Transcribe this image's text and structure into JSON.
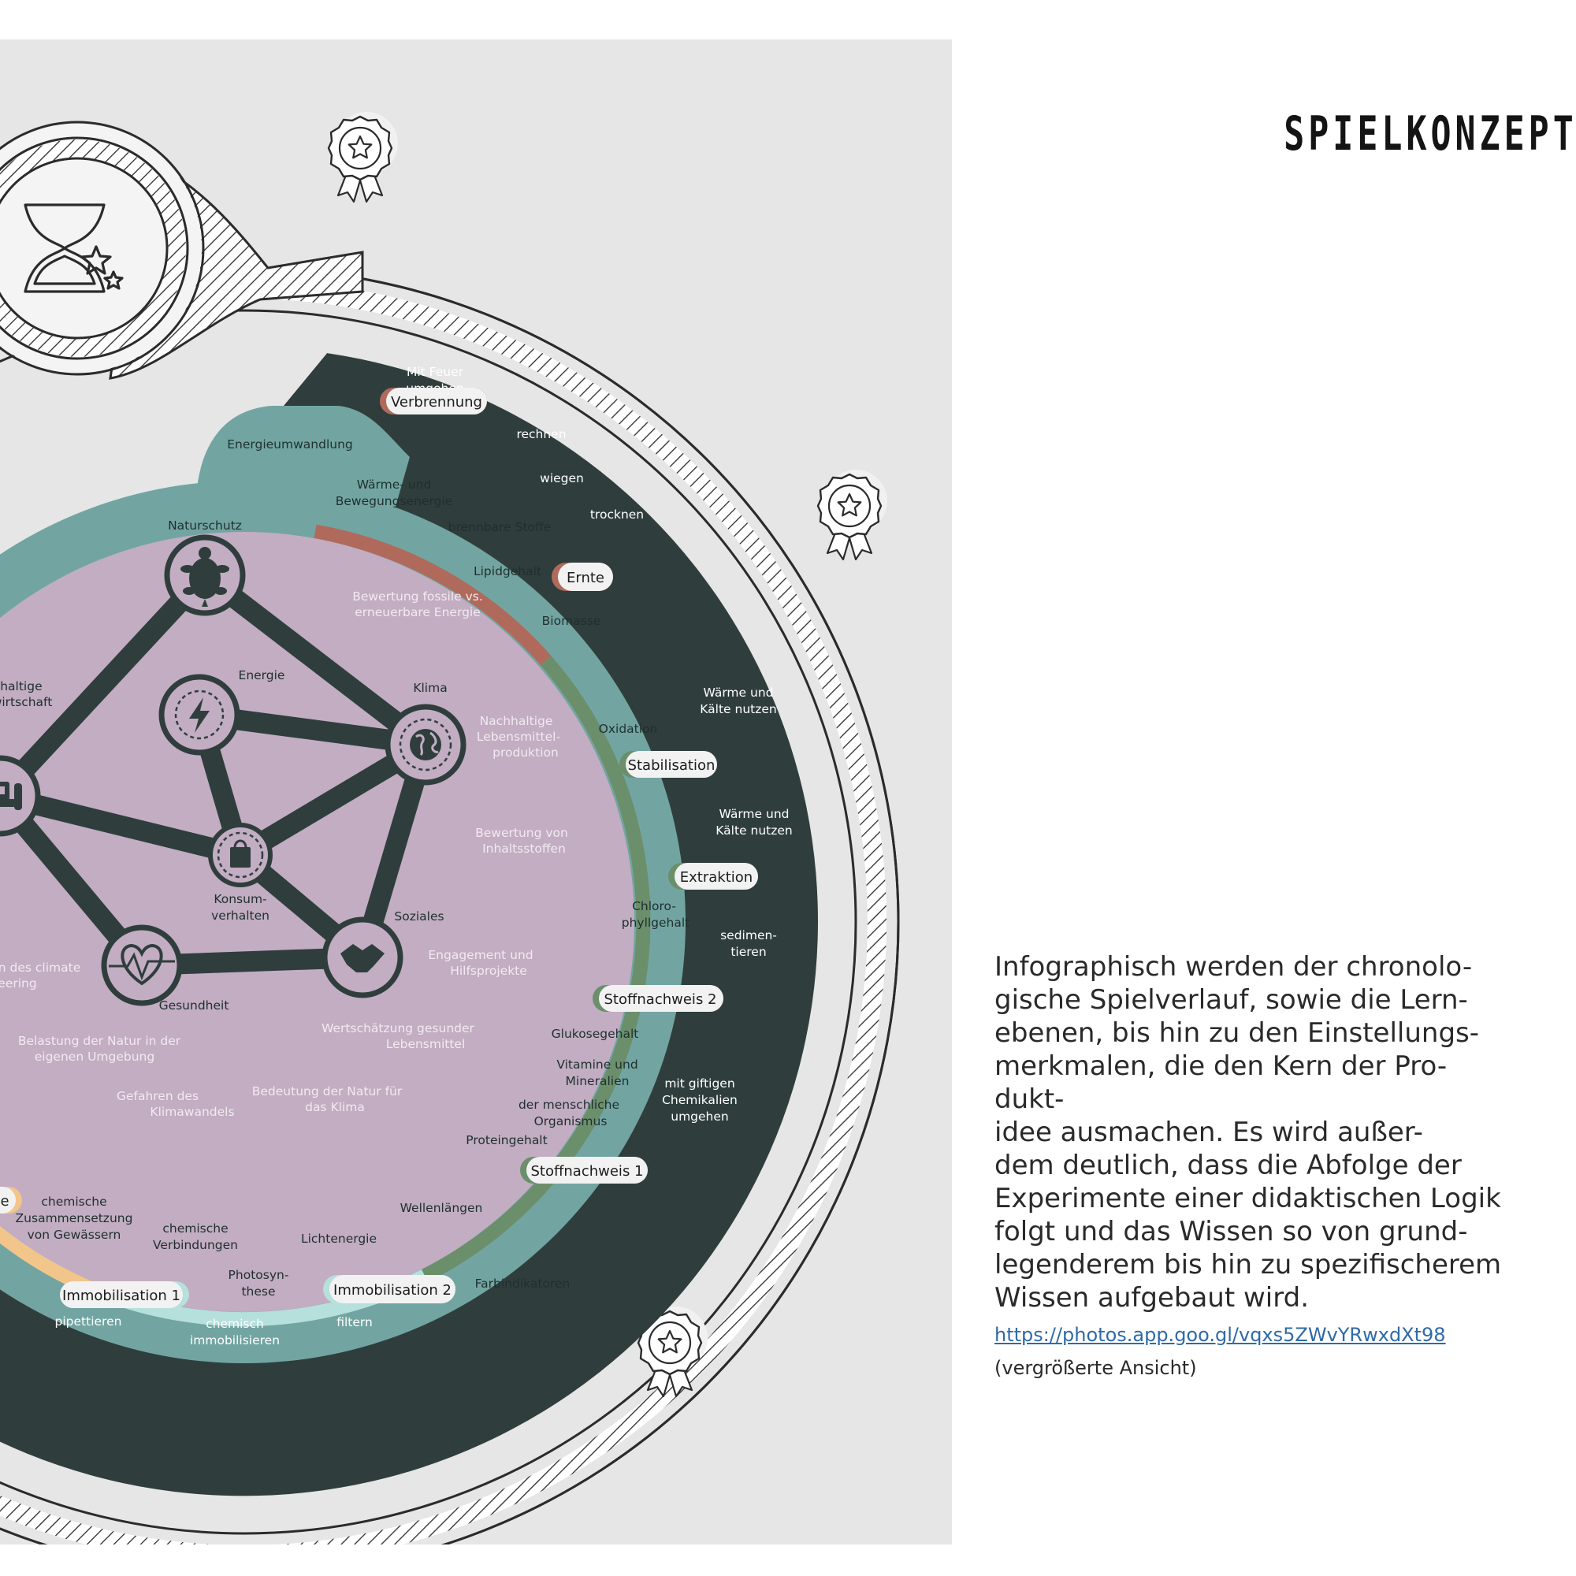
{
  "page": {
    "title": "SPIELKONZEPT",
    "description_lines": [
      "Infographisch werden der chronolo-",
      "gische Spielverlauf, sowie die Lern-",
      "ebenen, bis hin zu den Einstellungs-",
      "merkmalen, die den Kern der Pro-",
      "dukt-",
      "idee ausmachen. Es wird außer-",
      "dem deutlich, dass die Abfolge der",
      "Experimente einer didaktischen Logik",
      "folgt und das Wissen so von grund-",
      "legenderem bis hin zu spezifischerem",
      "Wissen aufgebaut wird."
    ],
    "link": "https://photos.app.goo.gl/vqxs5ZWvYRwxdXt98",
    "note": "(vergrößerte Ansicht)"
  },
  "diagram": {
    "colors": {
      "panel": "#e6e6e6",
      "outer_ring": "#2f3e3d",
      "mid_ring": "#72a5a2",
      "core": "#c2adc2",
      "network": "#2f3e3d",
      "arc_red": "#b06a5c",
      "arc_green": "#6b8f6b",
      "arc_lightblue": "#b6e0dc",
      "arc_orange": "#f2c58a"
    },
    "stations": {
      "verbrennung": "Verbrennung",
      "ernte": "Ernte",
      "stabilisation": "Stabilisation",
      "extraktion": "Extraktion",
      "stoffnachweis2": "Stoffnachweis 2",
      "stoffnachweis1": "Stoffnachweis 1",
      "immobilisation2": "Immobilisation 2",
      "immobilisation1": "Immobilisation 1",
      "partial": "e"
    },
    "outer": {
      "mit_feuer": [
        "Mit Feuer",
        "umgehen"
      ],
      "rechnen": "rechnen",
      "wiegen": "wiegen",
      "trocknen": "trocknen",
      "waerme1": [
        "Wärme und",
        "Kälte nutzen"
      ],
      "waerme2": [
        "Wärme und",
        "Kälte nutzen"
      ],
      "sedimentieren": [
        "sedimen-",
        "tieren"
      ],
      "chemikalien": [
        "mit giftigen",
        "Chemikalien",
        "umgehen"
      ],
      "pipettieren": "pipettieren",
      "immobilisieren": [
        "chemisch",
        "immobilisieren"
      ],
      "filtern": "filtern"
    },
    "middle": {
      "energieumwandlung": "Energieumwandlung",
      "waerme_bewegung": [
        "Wärme- und",
        "Bewegungsenergie"
      ],
      "brennbare_stoffe": "brennbare Stoffe",
      "lipidgehalt": "Lipidgehalt",
      "biomasse": "Biomasse",
      "oxidation": "Oxidation",
      "chlorophyll": [
        "Chloro-",
        "phyllgehalt"
      ],
      "glukosegehalt": "Glukosegehalt",
      "vitamine": [
        "Vitamine und",
        "Mineralien"
      ],
      "organismus": [
        "der menschliche",
        "Organismus"
      ],
      "proteingehalt": "Proteingehalt",
      "wellenlaengen": "Wellenlängen",
      "lichtenergie": "Lichtenergie",
      "farbindikatoren": "Farbindikatoren",
      "photosynthese": [
        "Photosyn-",
        "these"
      ],
      "chem_verbindungen": [
        "chemische",
        "Verbindungen"
      ],
      "chem_gewaesser": [
        "chemische",
        "Zusammensetzung",
        "von Gewässern"
      ]
    },
    "inner": {
      "fossil": [
        "Bewertung fossile vs.",
        "erneuerbare Energie"
      ],
      "lebensmittel": [
        "Nachhaltige",
        "Lebensmittel-",
        "produktion"
      ],
      "inhaltsstoffe": [
        "Bewertung von",
        "Inhaltsstoffen"
      ],
      "engagement": [
        "Engagement und",
        "Hilfsprojekte"
      ],
      "wertschaetzung": [
        "Wertschätzung gesunder",
        "Lebensmittel"
      ],
      "bedeutung": [
        "Bedeutung der Natur für",
        "das Klima"
      ],
      "gefahren": [
        "Gefahren des",
        "Klimawandels"
      ],
      "belastung": [
        "Belastung der Natur in der",
        "eigenen Umgebung"
      ],
      "climate": [
        "n des climate",
        "eering"
      ]
    },
    "nodes": {
      "naturschutz": "Naturschutz",
      "energie": "Energie",
      "klima": "Klima",
      "landwirtschaft": [
        "hhaltige",
        "wirtschaft"
      ],
      "konsum": [
        "Konsum-",
        "verhalten"
      ],
      "soziales": "Soziales",
      "gesundheit": "Gesundheit"
    },
    "icons": {
      "hourglass": "hourglass-icon",
      "award": "award-badge-icon",
      "turtle": "turtle-icon",
      "lightning": "lightning-icon",
      "globe": "globe-icon",
      "tractor": "tractor-icon",
      "bag": "shopping-bag-icon",
      "heart": "heartbeat-icon",
      "handshake": "handshake-icon"
    }
  }
}
